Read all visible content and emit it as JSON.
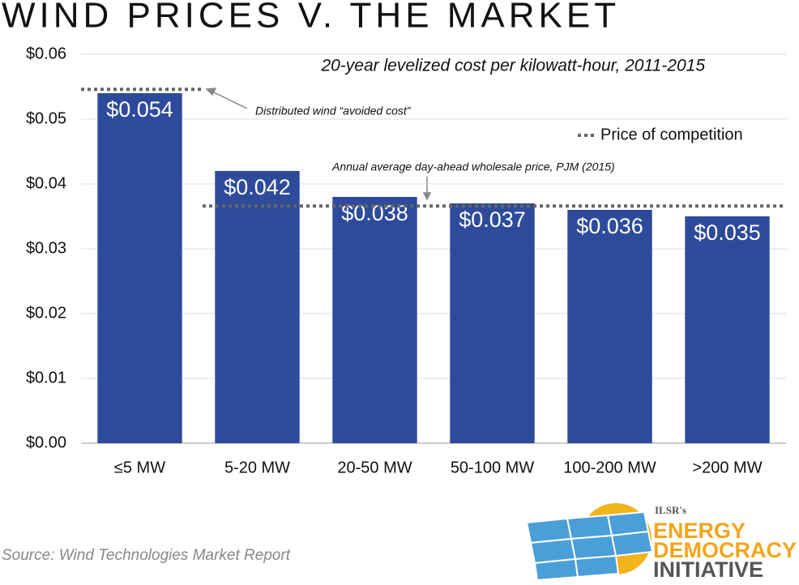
{
  "chart_data": {
    "type": "bar",
    "title": "WIND PRICES V. THE MARKET",
    "subtitle": "20-year levelized cost per kilowatt-hour, 2011-2015",
    "categories": [
      "≤5 MW",
      "5-20 MW",
      "20-50 MW",
      "50-100 MW",
      "100-200 MW",
      ">200 MW"
    ],
    "values": [
      0.054,
      0.042,
      0.038,
      0.037,
      0.036,
      0.035
    ],
    "value_labels": [
      "$0.054",
      "$0.042",
      "$0.038",
      "$0.037",
      "$0.036",
      "$0.035"
    ],
    "color": "#2e4b9b",
    "ylim": [
      0,
      0.06
    ],
    "yticks": [
      {
        "value": 0,
        "label": "$0.00"
      },
      {
        "value": 0.01,
        "label": "$0.01"
      },
      {
        "value": 0.02,
        "label": "$0.02"
      },
      {
        "value": 0.03,
        "label": "$0.03"
      },
      {
        "value": 0.04,
        "label": "$0.04"
      },
      {
        "value": 0.05,
        "label": "$0.05"
      },
      {
        "value": 0.06,
        "label": "$0.06"
      }
    ],
    "grid": true,
    "reference_lines": [
      {
        "label": "Distributed wind “avoided cost”",
        "value": 0.0546
      },
      {
        "label": "Annual average day-ahead wholesale price, PJM (2015)",
        "value": 0.0366
      }
    ],
    "legend": {
      "label": "Price of competition",
      "position": "upper right"
    },
    "source": "Source: Wind Technologies Market Report"
  },
  "logo": {
    "org": "ILSR's",
    "line1": "ENERGY",
    "line2": "DEMOCRACY",
    "line3": "INITIATIVE"
  }
}
